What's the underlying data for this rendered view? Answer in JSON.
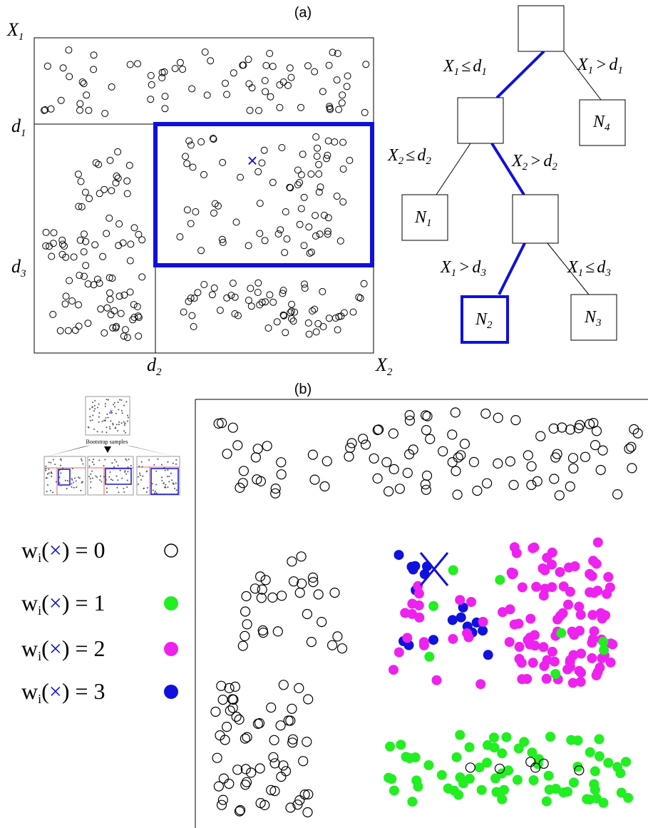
{
  "panel_a": {
    "label": "(a)",
    "axis_x": {
      "base": "X",
      "sub": "2"
    },
    "axis_y": {
      "base": "X",
      "sub": "1"
    },
    "thresholds": {
      "d1": {
        "base": "d",
        "sub": "1"
      },
      "d2": {
        "base": "d",
        "sub": "2"
      },
      "d3": {
        "base": "d",
        "sub": "3"
      }
    },
    "query_marker": "×"
  },
  "tree": {
    "edges": {
      "e1": {
        "var": "X",
        "var_sub": "1",
        "op": "≤",
        "thr": "d",
        "thr_sub": "1"
      },
      "e2": {
        "var": "X",
        "var_sub": "1",
        "op": ">",
        "thr": "d",
        "thr_sub": "1"
      },
      "e3": {
        "var": "X",
        "var_sub": "2",
        "op": "≤",
        "thr": "d",
        "thr_sub": "2"
      },
      "e4": {
        "var": "X",
        "var_sub": "2",
        "op": ">",
        "thr": "d",
        "thr_sub": "2"
      },
      "e5": {
        "var": "X",
        "var_sub": "1",
        "op": ">",
        "thr": "d",
        "thr_sub": "3"
      },
      "e6": {
        "var": "X",
        "var_sub": "1",
        "op": "≤",
        "thr": "d",
        "thr_sub": "3"
      }
    },
    "leaves": {
      "n1": {
        "base": "N",
        "sub": "1"
      },
      "n2": {
        "base": "N",
        "sub": "2"
      },
      "n3": {
        "base": "N",
        "sub": "3"
      },
      "n4": {
        "base": "N",
        "sub": "4"
      }
    }
  },
  "panel_b": {
    "label": "(b)",
    "bootstrap_caption": "Bootstrap samples",
    "legend": [
      {
        "prefix": "w",
        "sub": "i",
        "value": "0",
        "color": "#ffffff",
        "stroke": "#000000"
      },
      {
        "prefix": "w",
        "sub": "i",
        "value": "1",
        "color": "#22ee22",
        "stroke": "#22ee22"
      },
      {
        "prefix": "w",
        "sub": "i",
        "value": "2",
        "color": "#ee22ee",
        "stroke": "#ee22ee"
      },
      {
        "prefix": "w",
        "sub": "i",
        "value": "3",
        "color": "#1111dd",
        "stroke": "#1111dd"
      }
    ]
  },
  "colors": {
    "highlight": "#1010dd",
    "green": "#22ee22",
    "magenta": "#ee22ee",
    "blue": "#1111dd",
    "ink": "#000000"
  }
}
